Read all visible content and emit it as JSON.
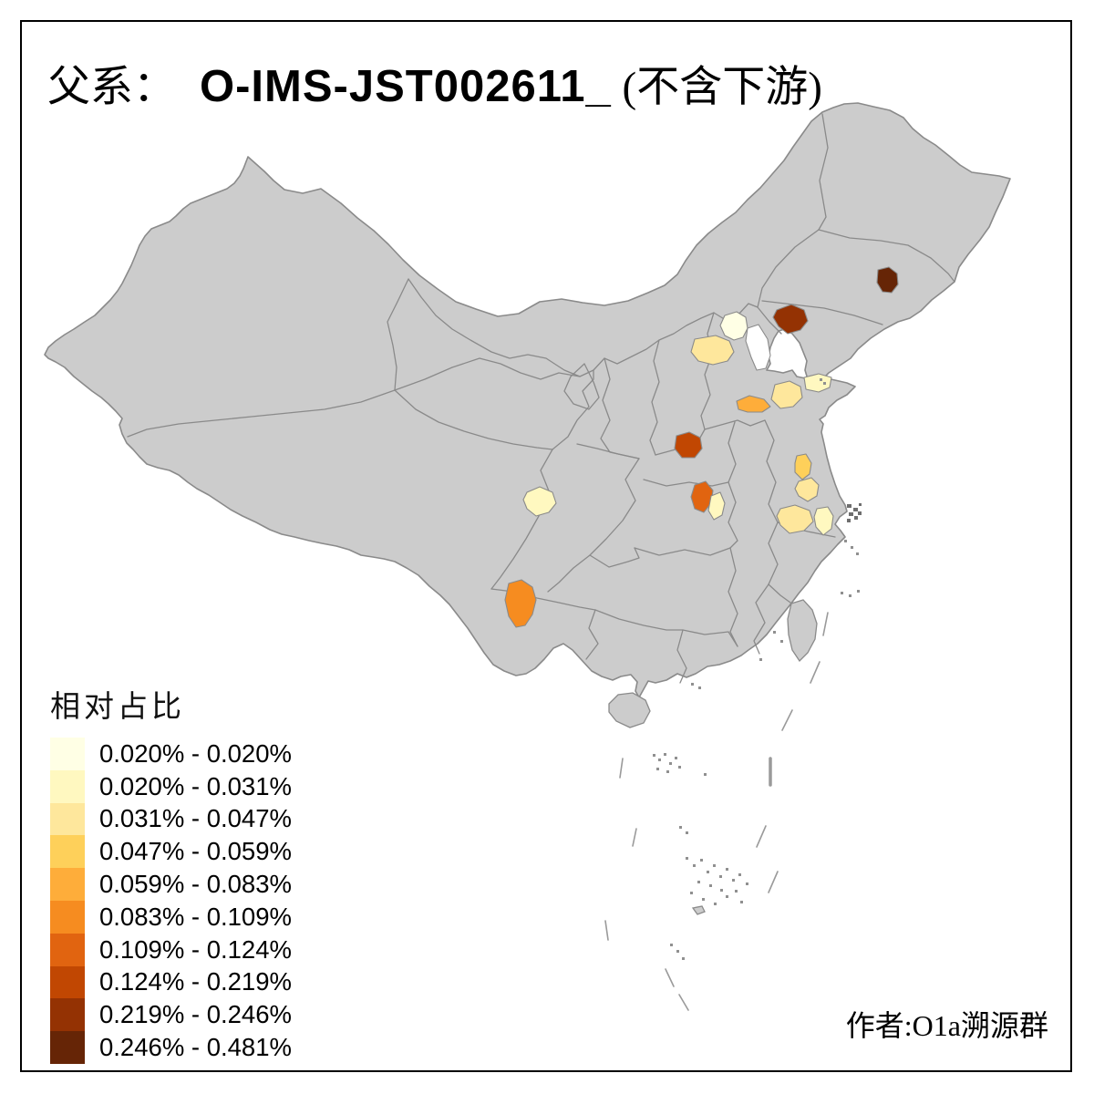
{
  "title": {
    "prefix": "父系：",
    "haplogroup": "O-IMS-JST002611_",
    "suffix": " (不含下游)"
  },
  "legend": {
    "title": "相对占比",
    "bins": [
      {
        "range": "0.020% - 0.020%",
        "color": "#FFFFE5"
      },
      {
        "range": "0.020% - 0.031%",
        "color": "#FFF8C0"
      },
      {
        "range": "0.031% - 0.047%",
        "color": "#FEE79C"
      },
      {
        "range": "0.047% - 0.059%",
        "color": "#FED05A"
      },
      {
        "range": "0.059% - 0.083%",
        "color": "#FEAD3A"
      },
      {
        "range": "0.083% - 0.109%",
        "color": "#F68C20"
      },
      {
        "range": "0.109% - 0.124%",
        "color": "#E16410"
      },
      {
        "range": "0.124% - 0.219%",
        "color": "#C14702"
      },
      {
        "range": "0.219% - 0.246%",
        "color": "#943203"
      },
      {
        "range": "0.246% - 0.481%",
        "color": "#662506"
      }
    ]
  },
  "footer": {
    "credit": "作者:O1a溯源群"
  },
  "map": {
    "land_color": "#CCCCCC",
    "border_color": "#8A8A8A",
    "sea_color": "#FFFFFF",
    "regions": [
      {
        "id": "beijing-area",
        "color": "#FFFFE5"
      },
      {
        "id": "tianjin-area",
        "color": "#FFFFFF"
      },
      {
        "id": "hebei-area",
        "color": "#FEE79C"
      },
      {
        "id": "liaoning-area",
        "color": "#943203"
      },
      {
        "id": "jilin-area",
        "color": "#662506"
      },
      {
        "id": "shandong-east-area",
        "color": "#FFF8C0"
      },
      {
        "id": "shandong-mid-area",
        "color": "#FEE79C"
      },
      {
        "id": "shandong-west-area",
        "color": "#FEAD3A"
      },
      {
        "id": "henan-area",
        "color": "#C14702"
      },
      {
        "id": "jiangsu-north-area",
        "color": "#FED05A"
      },
      {
        "id": "jiangsu-mid-area",
        "color": "#FEE79C"
      },
      {
        "id": "hubei-west-area",
        "color": "#E16410"
      },
      {
        "id": "hubei-east-area",
        "color": "#FFF8C0"
      },
      {
        "id": "sichuan-area",
        "color": "#FFF8C0"
      },
      {
        "id": "jiangsu-south-area",
        "color": "#FEE79C"
      },
      {
        "id": "zhejiang-north-area",
        "color": "#FFF8C0"
      },
      {
        "id": "yunnan-area",
        "color": "#F68C20"
      }
    ]
  }
}
